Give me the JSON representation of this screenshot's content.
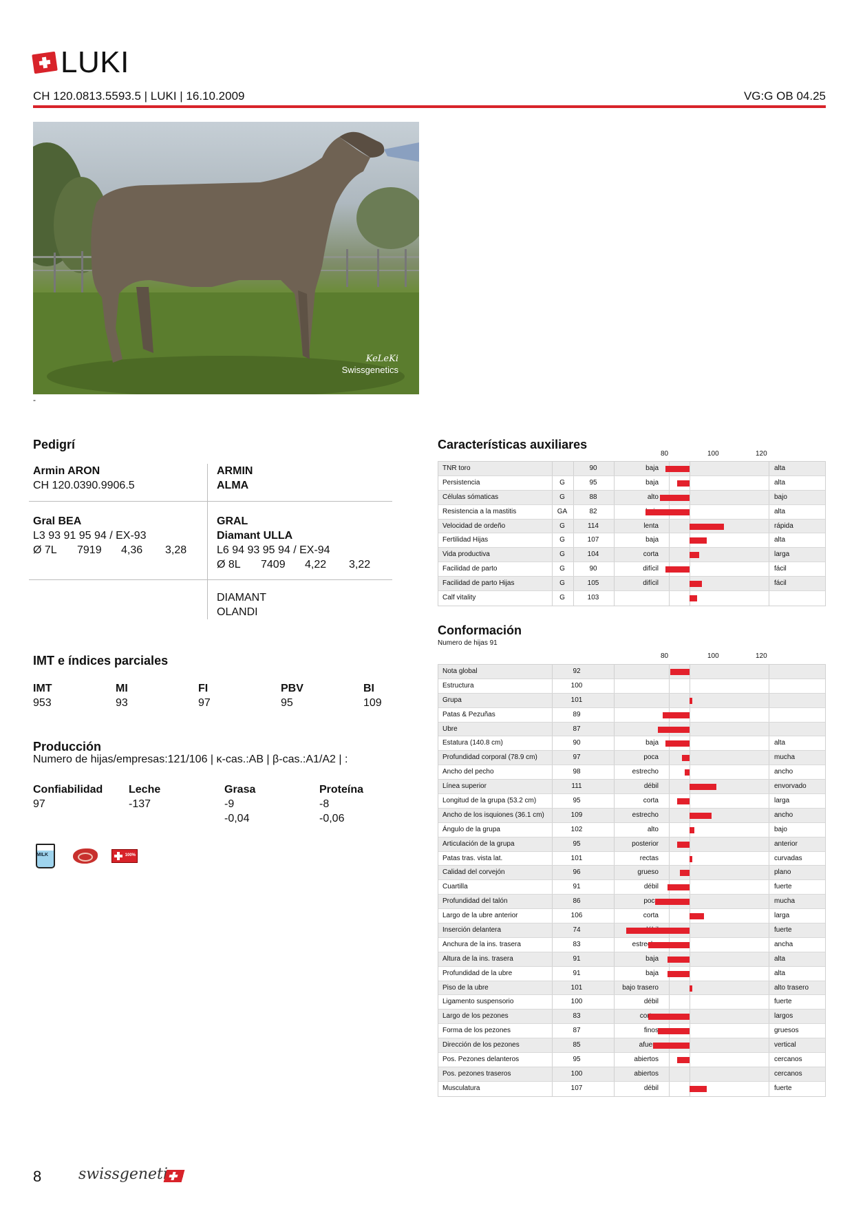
{
  "header": {
    "name": "LUKI",
    "id_line": "CH 120.0813.5593.5 | LUKI | 16.10.2009",
    "vg": "VG:G OB 04.25"
  },
  "photo": {
    "watermark1": "KeLeKi",
    "watermark2": "Swissgenetics",
    "caption": "-"
  },
  "pedigree": {
    "title": "Pedigrí",
    "sire_name": "Armin ARON",
    "sire_id": "CH 120.0390.9906.5",
    "ss": "ARMIN",
    "sd": "ALMA",
    "dam_name": "Gral BEA",
    "dam_score": "L3 93 91 95 94 / EX-93",
    "dam_nums": [
      "Ø 7L",
      "7919",
      "4,36",
      "3,28"
    ],
    "ds": "GRAL",
    "dd_name": "Diamant ULLA",
    "dd_score": "L6 94 93 95 94 / EX-94",
    "dd_nums": [
      "Ø 8L",
      "7409",
      "4,22",
      "3,22"
    ],
    "dds": "DIAMANT",
    "ddd": "OLANDI"
  },
  "imt": {
    "title": "IMT e índices parciales",
    "cols": [
      {
        "h": "IMT",
        "v": "953"
      },
      {
        "h": "MI",
        "v": "93"
      },
      {
        "h": "FI",
        "v": "97"
      },
      {
        "h": "PBV",
        "v": "95"
      },
      {
        "h": "BI",
        "v": "109"
      }
    ]
  },
  "production": {
    "title": "Producción",
    "subtitle": "Numero de hijas/empresas:121/106 | κ-cas.:AB | β-cas.:A1/A2 | :",
    "rel_h": "Confiabilidad",
    "rel_v": "97",
    "milk_h": "Leche",
    "milk_v": "-137",
    "fat_h": "Grasa",
    "fat_v": "-9",
    "fat_v2": "-0,04",
    "prot_h": "Proteína",
    "prot_v": "-8",
    "prot_v2": "-0,06",
    "milk_icon_text": "MILK",
    "swiss_icon_text": "100%"
  },
  "aux": {
    "title": "Características auxiliares",
    "scale": [
      "80",
      "100",
      "120"
    ],
    "rows": [
      {
        "name": "TNR toro",
        "g": "",
        "val": 90,
        "low": "baja",
        "high": "alta"
      },
      {
        "name": "Persistencia",
        "g": "G",
        "val": 95,
        "low": "baja",
        "high": "alta"
      },
      {
        "name": "Células sómaticas",
        "g": "G",
        "val": 88,
        "low": "alto",
        "high": "bajo"
      },
      {
        "name": "Resistencia a la mastitis",
        "g": "GA",
        "val": 82,
        "low": "baja",
        "high": "alta"
      },
      {
        "name": "Velocidad de ordeño",
        "g": "G",
        "val": 114,
        "low": "lenta",
        "high": "rápida"
      },
      {
        "name": "Fertilidad Hijas",
        "g": "G",
        "val": 107,
        "low": "baja",
        "high": "alta"
      },
      {
        "name": "Vida productiva",
        "g": "G",
        "val": 104,
        "low": "corta",
        "high": "larga"
      },
      {
        "name": "Facilidad de parto",
        "g": "G",
        "val": 90,
        "low": "difícil",
        "high": "fácil"
      },
      {
        "name": "Facilidad de parto Hijas",
        "g": "G",
        "val": 105,
        "low": "difícil",
        "high": "fácil"
      },
      {
        "name": "Calf vitality",
        "g": "G",
        "val": 103,
        "low": "",
        "high": ""
      }
    ]
  },
  "conf": {
    "title": "Conformación",
    "subtitle": "Numero de hijas 91",
    "scale": [
      "80",
      "100",
      "120"
    ],
    "rows": [
      {
        "name": "Nota global",
        "val": 92,
        "low": "",
        "high": ""
      },
      {
        "name": "Estructura",
        "val": 100,
        "low": "",
        "high": ""
      },
      {
        "name": "Grupa",
        "val": 101,
        "low": "",
        "high": ""
      },
      {
        "name": "Patas & Pezuñas",
        "val": 89,
        "low": "",
        "high": ""
      },
      {
        "name": "Ubre",
        "val": 87,
        "low": "",
        "high": ""
      },
      {
        "name": "Estatura (140.8 cm)",
        "val": 90,
        "low": "baja",
        "high": "alta"
      },
      {
        "name": "Profundidad corporal (78.9 cm)",
        "val": 97,
        "low": "poca",
        "high": "mucha"
      },
      {
        "name": "Ancho del pecho",
        "val": 98,
        "low": "estrecho",
        "high": "ancho"
      },
      {
        "name": "Línea superior",
        "val": 111,
        "low": "débil",
        "high": "envorvado"
      },
      {
        "name": "Longitud de la grupa (53.2 cm)",
        "val": 95,
        "low": "corta",
        "high": "larga"
      },
      {
        "name": "Ancho de los isquiones (36.1 cm)",
        "val": 109,
        "low": "estrecho",
        "high": "ancho"
      },
      {
        "name": "Ángulo de la grupa",
        "val": 102,
        "low": "alto",
        "high": "bajo"
      },
      {
        "name": "Articulación de la grupa",
        "val": 95,
        "low": "posterior",
        "high": "anterior"
      },
      {
        "name": "Patas tras. vista lat.",
        "val": 101,
        "low": "rectas",
        "high": "curvadas"
      },
      {
        "name": "Calidad del corvejón",
        "val": 96,
        "low": "grueso",
        "high": "plano"
      },
      {
        "name": "Cuartilla",
        "val": 91,
        "low": "débil",
        "high": "fuerte"
      },
      {
        "name": "Profundidad del talón",
        "val": 86,
        "low": "poca",
        "high": "mucha"
      },
      {
        "name": "Largo de la ubre anterior",
        "val": 106,
        "low": "corta",
        "high": "larga"
      },
      {
        "name": "Inserción delantera",
        "val": 74,
        "low": "débil",
        "high": "fuerte"
      },
      {
        "name": "Anchura de la ins. trasera",
        "val": 83,
        "low": "estrecha",
        "high": "ancha"
      },
      {
        "name": "Altura de la ins. trasera",
        "val": 91,
        "low": "baja",
        "high": "alta"
      },
      {
        "name": "Profundidad de la ubre",
        "val": 91,
        "low": "baja",
        "high": "alta"
      },
      {
        "name": "Piso de la ubre",
        "val": 101,
        "low": "bajo trasero",
        "high": "alto trasero"
      },
      {
        "name": "Ligamento suspensorio",
        "val": 100,
        "low": "débil",
        "high": "fuerte"
      },
      {
        "name": "Largo de los pezones",
        "val": 83,
        "low": "cortos",
        "high": "largos"
      },
      {
        "name": "Forma de los pezones",
        "val": 87,
        "low": "finos",
        "high": "gruesos"
      },
      {
        "name": "Dirección de los pezones",
        "val": 85,
        "low": "afuera",
        "high": "vertical"
      },
      {
        "name": "Pos. Pezones delanteros",
        "val": 95,
        "low": "abiertos",
        "high": "cercanos"
      },
      {
        "name": "Pos. pezones traseros",
        "val": 100,
        "low": "abiertos",
        "high": "cercanos"
      },
      {
        "name": "Musculatura",
        "val": 107,
        "low": "débil",
        "high": "fuerte"
      }
    ]
  },
  "footer": {
    "page": "8",
    "brand": "swissgenetics"
  },
  "colors": {
    "accent": "#d8232a",
    "bar": "#e3202b"
  }
}
